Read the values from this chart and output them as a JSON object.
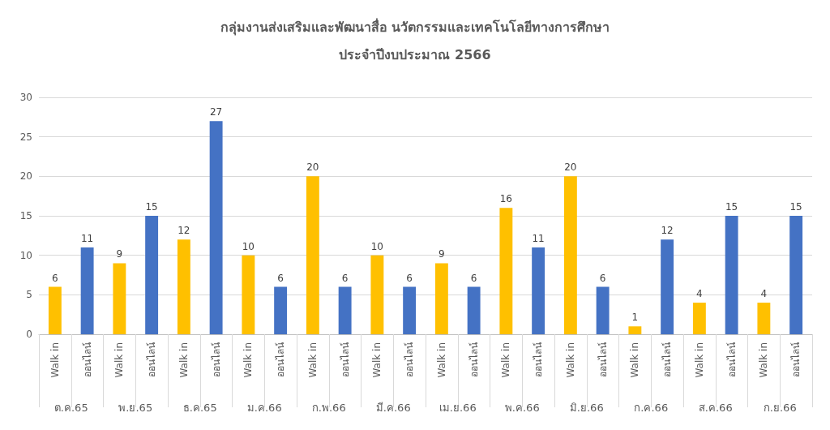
{
  "chart_data": {
    "type": "bar",
    "title": "กลุ่มงานส่งเสริมและพัฒนาสื่อ นวัตกรรมและเทคโนโลยีทางการศึกษา",
    "subtitle": "ประจำปีงบประมาณ 2566",
    "categories": [
      "ต.ค.65",
      "พ.ย.65",
      "ธ.ค.65",
      "ม.ค.66",
      "ก.พ.66",
      "มี.ค.66",
      "เม.ย.66",
      "พ.ค.66",
      "มิ.ย.66",
      "ก.ค.66",
      "ส.ค.66",
      "ก.ย.66"
    ],
    "series": [
      {
        "name": "Walk in",
        "color": "#ffc000",
        "values": [
          6,
          9,
          12,
          10,
          20,
          10,
          9,
          16,
          20,
          1,
          4,
          4
        ]
      },
      {
        "name": "ออนไลน์",
        "color": "#4472c4",
        "values": [
          11,
          15,
          27,
          6,
          6,
          6,
          6,
          11,
          6,
          12,
          15,
          15
        ]
      }
    ],
    "ylim": [
      0,
      30
    ],
    "yticks": [
      0,
      5,
      10,
      15,
      20,
      25,
      30
    ],
    "grid": "y",
    "data_labels": true
  }
}
